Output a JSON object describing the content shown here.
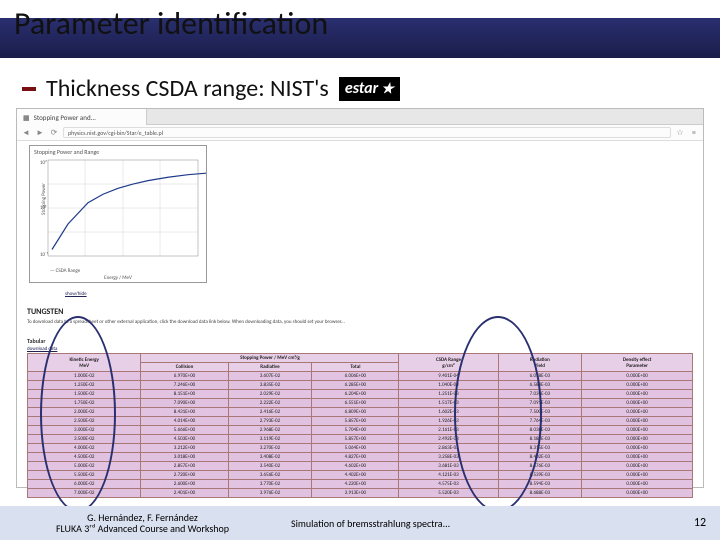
{
  "slide": {
    "title": "Parameter identification",
    "bullet": "Thickness CSDA range: NIST's",
    "estar_label": "estar"
  },
  "browser": {
    "tab_title": "Stopping Power and...",
    "url": "physics.nist.gov/cgi-bin/Star/e_table.pl"
  },
  "plot": {
    "title": "Stopping Power and Range",
    "ylabel": "Stopping Power",
    "xlabel": "Energy / MeV",
    "legend": "CSDA Range",
    "xlim": [
      0.01,
      1000
    ],
    "ylim": [
      0.1,
      100
    ],
    "curve": [
      [
        4,
        110
      ],
      [
        20,
        80
      ],
      [
        40,
        55
      ],
      [
        55,
        45
      ],
      [
        70,
        38
      ],
      [
        85,
        33
      ],
      [
        100,
        29
      ],
      [
        120,
        25
      ],
      [
        140,
        22
      ],
      [
        160,
        20
      ]
    ]
  },
  "page_text": {
    "caption_link": "show/hide",
    "heading": "TUNGSTEN",
    "subhead": "Tabular",
    "small_link": "download data",
    "desc": "To download data to a spreadsheet or other external application, click the download data link below. When downloading data, you should set your browser..."
  },
  "table": {
    "group_header": "Stopping Power / MeV cm²/g",
    "columns": [
      "Kinetic Energy\\nMeV",
      "Collision",
      "Radiative",
      "Total",
      "CSDA Range\\ng/cm²",
      "Radiation\\nYield",
      "Density effect\\nParameter"
    ],
    "rows": [
      [
        "1.000E-02",
        "6.970E+00",
        "3.607E-02",
        "6.006E+00",
        "9.401E-04",
        "6.078E-03",
        "0.000E+00"
      ],
      [
        "1.250E-02",
        "7.246E+00",
        "3.835E-02",
        "6.285E+00",
        "1.040E-03",
        "6.584E-03",
        "0.000E+00"
      ],
      [
        "1.500E-02",
        "8.151E+00",
        "2.029E-02",
        "6.204E+00",
        "1.251E-03",
        "7.034E-03",
        "0.000E+00"
      ],
      [
        "1.750E-02",
        "7.090E+00",
        "2.222E-02",
        "6.551E+00",
        "1.517E-03",
        "7.091E-03",
        "0.000E+00"
      ],
      [
        "2.000E-02",
        "8.431E+00",
        "2.416E-02",
        "6.809E+00",
        "1.602E-03",
        "7.500E-03",
        "0.000E+00"
      ],
      [
        "2.500E-02",
        "4.014E+00",
        "2.793E-02",
        "5.857E+00",
        "1.926E-03",
        "7.764E-03",
        "0.000E+00"
      ],
      [
        "3.000E-02",
        "5.666E+00",
        "2.968E-02",
        "5.704E+00",
        "2.161E-03",
        "8.038E-03",
        "0.000E+00"
      ],
      [
        "3.500E-02",
        "4.503E+00",
        "3.119E-02",
        "5.857E+00",
        "2.492E-03",
        "8.183E-03",
        "0.000E+00"
      ],
      [
        "4.000E-02",
        "3.212E+00",
        "3.270E-02",
        "5.064E+00",
        "2.863E-03",
        "8.315E-03",
        "0.000E+00"
      ],
      [
        "4.500E-02",
        "3.018E+00",
        "3.408E-02",
        "4.827E+00",
        "3.258E-03",
        "8.402E-03",
        "0.000E+00"
      ],
      [
        "5.000E-02",
        "2.857E+00",
        "3.540E-02",
        "4.602E+00",
        "3.681E-03",
        "8.476E-03",
        "0.000E+00"
      ],
      [
        "5.500E-02",
        "2.720E+00",
        "3.656E-02",
        "4.402E+00",
        "4.121E-03",
        "8.539E-03",
        "0.000E+00"
      ],
      [
        "6.000E-02",
        "2.600E+00",
        "3.770E-02",
        "4.220E+00",
        "4.575E-03",
        "8.594E-03",
        "0.000E+00"
      ],
      [
        "7.000E-02",
        "2.401E+00",
        "3.976E-02",
        "3.913E+00",
        "5.520E-03",
        "8.688E-03",
        "0.000E+00"
      ]
    ]
  },
  "footer": {
    "authors": "G. Hernández, F. Fernández",
    "course": "FLUKA 3ʳᵈ Advanced Course and Workshop",
    "subtitle": "Simulation of bremsstrahlung spectra...",
    "page": "12"
  },
  "colors": {
    "band": "#2a2f6f",
    "bullet": "#7a0f12",
    "table_bg": "#e0c1e0",
    "footer_bg": "#d9e0ef",
    "oval": "#2a2f6f"
  }
}
